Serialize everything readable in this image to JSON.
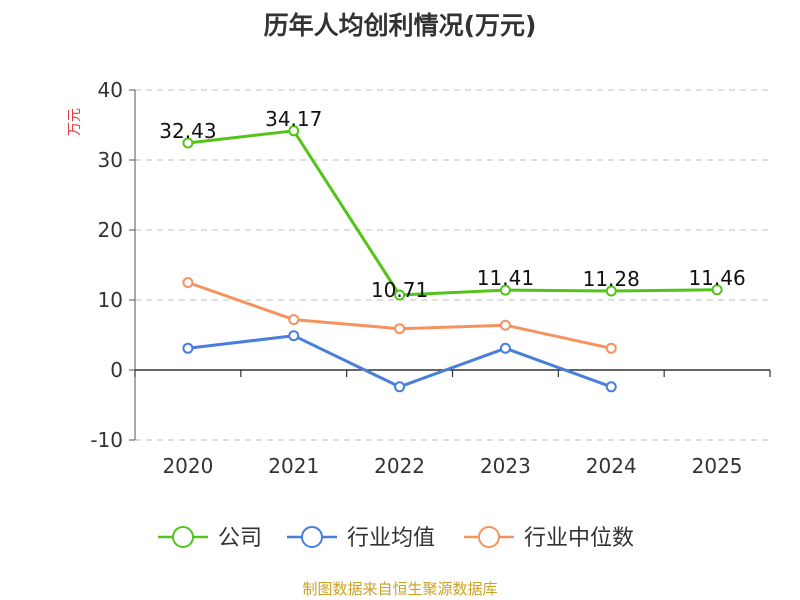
{
  "chart_data": {
    "type": "line",
    "title": "历年人均创利情况(万元)",
    "ylabel": "万元",
    "xlabel": "",
    "categories": [
      "2020",
      "2021",
      "2022",
      "2023",
      "2024",
      "2025"
    ],
    "ylim": [
      -10,
      40
    ],
    "yticks": [
      -10,
      0,
      10,
      20,
      30,
      40
    ],
    "grid": true,
    "legend_position": "bottom",
    "series": [
      {
        "name": "公司",
        "color": "#52c41a",
        "values": [
          32.43,
          34.17,
          10.71,
          11.41,
          11.28,
          11.46
        ],
        "labels": [
          "32.43",
          "34.17",
          "10.71",
          "11.41",
          "11.28",
          "11.46"
        ]
      },
      {
        "name": "行业均值",
        "color": "#4a7fd9",
        "values": [
          3.1,
          4.9,
          -2.4,
          3.1,
          -2.4,
          null
        ]
      },
      {
        "name": "行业中位数",
        "color": "#f59360",
        "values": [
          12.5,
          7.2,
          5.9,
          6.4,
          3.1,
          null
        ]
      }
    ]
  },
  "source": "制图数据来自恒生聚源数据库"
}
